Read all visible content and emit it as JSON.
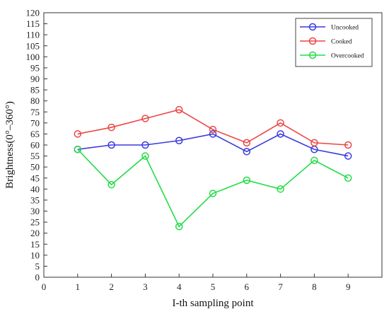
{
  "chart_data": {
    "type": "line",
    "xlabel": "I-th sampling point",
    "ylabel": "Brightness(0°–360°)",
    "xlim": [
      0,
      10
    ],
    "ylim": [
      0,
      120
    ],
    "xticks": [
      0,
      1,
      2,
      3,
      4,
      5,
      6,
      7,
      8,
      9
    ],
    "yticks": [
      0,
      5,
      10,
      15,
      20,
      25,
      30,
      35,
      40,
      45,
      50,
      55,
      60,
      65,
      70,
      75,
      80,
      85,
      90,
      95,
      100,
      105,
      110,
      115,
      120
    ],
    "x": [
      1,
      2,
      3,
      4,
      5,
      6,
      7,
      8,
      9
    ],
    "grid": false,
    "legend_position": "top-right",
    "series": [
      {
        "name": "Uncooked",
        "color": "#3a3ae0",
        "marker": "circle",
        "values": [
          58,
          60,
          60,
          62,
          65,
          57,
          65,
          58,
          55
        ]
      },
      {
        "name": "Cooked",
        "color": "#ec4545",
        "marker": "circle",
        "values": [
          65,
          68,
          72,
          76,
          67,
          61,
          70,
          61,
          60
        ]
      },
      {
        "name": "Overcooked",
        "color": "#22dd44",
        "marker": "circle",
        "values": [
          58,
          42,
          55,
          23,
          38,
          44,
          40,
          53,
          45
        ]
      }
    ]
  }
}
